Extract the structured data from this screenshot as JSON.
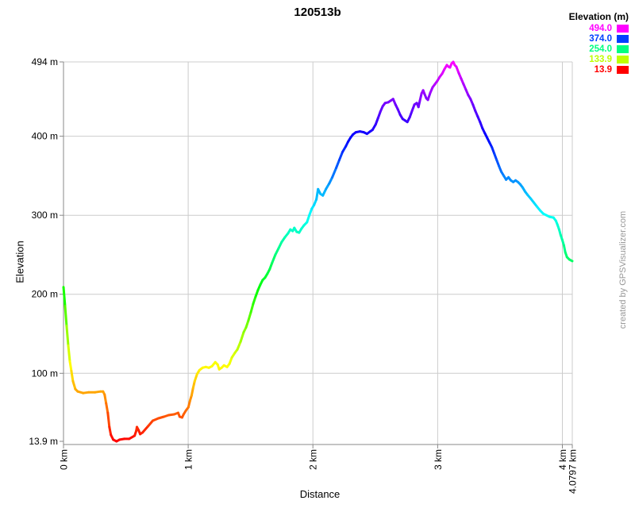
{
  "title": "120513b",
  "watermark": "created by GPSVisualizer.com",
  "legend": {
    "title": "Elevation (m)",
    "entries": [
      {
        "label": "494.0",
        "color": "#ff00ff"
      },
      {
        "label": "374.0",
        "color": "#0040ff"
      },
      {
        "label": "254.0",
        "color": "#00ff80"
      },
      {
        "label": "133.9",
        "color": "#bfff00"
      },
      {
        "label": "13.9",
        "color": "#ff0000"
      }
    ]
  },
  "colors": {
    "background": "#ffffff",
    "grid": "#cccccc",
    "axis": "#888888",
    "tick": "#888888",
    "text": "#000000",
    "watermark": "#999999"
  },
  "chart_data": {
    "type": "line",
    "title": "120513b",
    "xlabel": "Distance",
    "ylabel": "Elevation",
    "x_unit": "km",
    "y_unit": "m",
    "xlim": [
      0,
      4.0797
    ],
    "ylim": [
      13.9,
      494
    ],
    "grid": true,
    "legend_position": "top-right",
    "color_mode": "rainbow-by-elevation",
    "hue_range_deg": [
      0,
      300
    ],
    "x_ticks": [
      {
        "v": 0,
        "label": "0 km"
      },
      {
        "v": 1,
        "label": "1 km"
      },
      {
        "v": 2,
        "label": "2 km"
      },
      {
        "v": 3,
        "label": "3 km"
      },
      {
        "v": 4,
        "label": "4 km"
      },
      {
        "v": 4.0797,
        "label": "4.0797 km"
      }
    ],
    "y_ticks": [
      {
        "v": 494,
        "label": "494 m"
      },
      {
        "v": 400,
        "label": "400 m"
      },
      {
        "v": 300,
        "label": "300 m"
      },
      {
        "v": 200,
        "label": "200 m"
      },
      {
        "v": 100,
        "label": "100 m"
      },
      {
        "v": 13.9,
        "label": "13.9 m"
      }
    ],
    "points": [
      [
        0,
        209
      ],
      [
        0.013,
        185
      ],
      [
        0.025,
        160
      ],
      [
        0.038,
        135
      ],
      [
        0.051,
        115
      ],
      [
        0.063,
        103
      ],
      [
        0.076,
        90
      ],
      [
        0.095,
        80
      ],
      [
        0.114,
        77
      ],
      [
        0.158,
        75
      ],
      [
        0.203,
        76
      ],
      [
        0.254,
        76
      ],
      [
        0.298,
        77
      ],
      [
        0.317,
        77
      ],
      [
        0.33,
        73
      ],
      [
        0.342,
        62
      ],
      [
        0.355,
        50
      ],
      [
        0.368,
        32
      ],
      [
        0.38,
        22
      ],
      [
        0.399,
        16
      ],
      [
        0.425,
        13.9
      ],
      [
        0.45,
        16
      ],
      [
        0.488,
        17
      ],
      [
        0.526,
        17
      ],
      [
        0.57,
        21
      ],
      [
        0.583,
        27
      ],
      [
        0.589,
        32
      ],
      [
        0.602,
        28
      ],
      [
        0.615,
        23
      ],
      [
        0.634,
        25
      ],
      [
        0.678,
        33
      ],
      [
        0.716,
        40
      ],
      [
        0.761,
        43
      ],
      [
        0.805,
        45
      ],
      [
        0.843,
        47
      ],
      [
        0.887,
        48
      ],
      [
        0.919,
        50
      ],
      [
        0.932,
        45
      ],
      [
        0.951,
        44
      ],
      [
        0.963,
        48
      ],
      [
        0.982,
        53
      ],
      [
        1.001,
        57
      ],
      [
        1.014,
        65
      ],
      [
        1.027,
        72
      ],
      [
        1.039,
        81
      ],
      [
        1.052,
        90
      ],
      [
        1.071,
        99
      ],
      [
        1.09,
        104
      ],
      [
        1.115,
        107
      ],
      [
        1.141,
        108
      ],
      [
        1.166,
        107
      ],
      [
        1.191,
        109
      ],
      [
        1.217,
        114
      ],
      [
        1.236,
        111
      ],
      [
        1.249,
        105
      ],
      [
        1.268,
        107
      ],
      [
        1.287,
        110
      ],
      [
        1.312,
        108
      ],
      [
        1.331,
        112
      ],
      [
        1.35,
        120
      ],
      [
        1.375,
        126
      ],
      [
        1.394,
        130
      ],
      [
        1.42,
        140
      ],
      [
        1.445,
        152
      ],
      [
        1.464,
        158
      ],
      [
        1.483,
        167
      ],
      [
        1.502,
        177
      ],
      [
        1.521,
        188
      ],
      [
        1.54,
        197
      ],
      [
        1.559,
        205
      ],
      [
        1.578,
        212
      ],
      [
        1.597,
        218
      ],
      [
        1.616,
        221
      ],
      [
        1.635,
        226
      ],
      [
        1.654,
        232
      ],
      [
        1.673,
        240
      ],
      [
        1.699,
        250
      ],
      [
        1.724,
        258
      ],
      [
        1.749,
        266
      ],
      [
        1.775,
        272
      ],
      [
        1.8,
        277
      ],
      [
        1.819,
        282
      ],
      [
        1.838,
        280
      ],
      [
        1.851,
        284
      ],
      [
        1.87,
        279
      ],
      [
        1.889,
        278
      ],
      [
        1.908,
        283
      ],
      [
        1.927,
        287
      ],
      [
        1.952,
        291
      ],
      [
        1.971,
        300
      ],
      [
        1.99,
        308
      ],
      [
        2.009,
        313
      ],
      [
        2.028,
        320
      ],
      [
        2.041,
        333
      ],
      [
        2.06,
        327
      ],
      [
        2.079,
        325
      ],
      [
        2.104,
        333
      ],
      [
        2.13,
        340
      ],
      [
        2.155,
        348
      ],
      [
        2.187,
        360
      ],
      [
        2.212,
        370
      ],
      [
        2.237,
        380
      ],
      [
        2.263,
        387
      ],
      [
        2.282,
        393
      ],
      [
        2.301,
        398
      ],
      [
        2.32,
        402
      ],
      [
        2.345,
        405
      ],
      [
        2.377,
        406
      ],
      [
        2.408,
        405
      ],
      [
        2.434,
        403
      ],
      [
        2.459,
        406
      ],
      [
        2.478,
        408
      ],
      [
        2.503,
        415
      ],
      [
        2.522,
        423
      ],
      [
        2.541,
        431
      ],
      [
        2.56,
        438
      ],
      [
        2.579,
        442
      ],
      [
        2.605,
        443
      ],
      [
        2.624,
        445
      ],
      [
        2.643,
        447
      ],
      [
        2.662,
        440
      ],
      [
        2.681,
        434
      ],
      [
        2.7,
        427
      ],
      [
        2.719,
        422
      ],
      [
        2.738,
        420
      ],
      [
        2.757,
        418
      ],
      [
        2.776,
        424
      ],
      [
        2.795,
        432
      ],
      [
        2.814,
        440
      ],
      [
        2.833,
        442
      ],
      [
        2.846,
        437
      ],
      [
        2.858,
        445
      ],
      [
        2.871,
        454
      ],
      [
        2.884,
        458
      ],
      [
        2.896,
        453
      ],
      [
        2.909,
        448
      ],
      [
        2.922,
        446
      ],
      [
        2.941,
        455
      ],
      [
        2.96,
        462
      ],
      [
        2.979,
        466
      ],
      [
        2.998,
        470
      ],
      [
        3.017,
        475
      ],
      [
        3.036,
        479
      ],
      [
        3.055,
        485
      ],
      [
        3.074,
        490
      ],
      [
        3.087,
        488
      ],
      [
        3.099,
        487
      ],
      [
        3.112,
        492
      ],
      [
        3.125,
        494
      ],
      [
        3.137,
        490
      ],
      [
        3.15,
        488
      ],
      [
        3.169,
        480
      ],
      [
        3.188,
        473
      ],
      [
        3.207,
        466
      ],
      [
        3.226,
        459
      ],
      [
        3.245,
        452
      ],
      [
        3.264,
        447
      ],
      [
        3.283,
        440
      ],
      [
        3.302,
        432
      ],
      [
        3.321,
        425
      ],
      [
        3.34,
        418
      ],
      [
        3.359,
        410
      ],
      [
        3.378,
        404
      ],
      [
        3.397,
        398
      ],
      [
        3.416,
        392
      ],
      [
        3.435,
        386
      ],
      [
        3.454,
        378
      ],
      [
        3.473,
        370
      ],
      [
        3.492,
        362
      ],
      [
        3.511,
        355
      ],
      [
        3.53,
        350
      ],
      [
        3.549,
        345
      ],
      [
        3.568,
        348
      ],
      [
        3.587,
        344
      ],
      [
        3.606,
        342
      ],
      [
        3.625,
        344
      ],
      [
        3.644,
        342
      ],
      [
        3.663,
        339
      ],
      [
        3.682,
        335
      ],
      [
        3.701,
        330
      ],
      [
        3.72,
        326
      ],
      [
        3.746,
        321
      ],
      [
        3.771,
        316
      ],
      [
        3.796,
        311
      ],
      [
        3.822,
        306
      ],
      [
        3.847,
        302
      ],
      [
        3.872,
        300
      ],
      [
        3.897,
        298
      ],
      [
        3.929,
        297
      ],
      [
        3.948,
        293
      ],
      [
        3.961,
        288
      ],
      [
        3.974,
        282
      ],
      [
        3.986,
        275
      ],
      [
        3.999,
        269
      ],
      [
        4.012,
        262
      ],
      [
        4.024,
        253
      ],
      [
        4.037,
        247
      ],
      [
        4.056,
        244
      ],
      [
        4.0797,
        242
      ]
    ]
  }
}
